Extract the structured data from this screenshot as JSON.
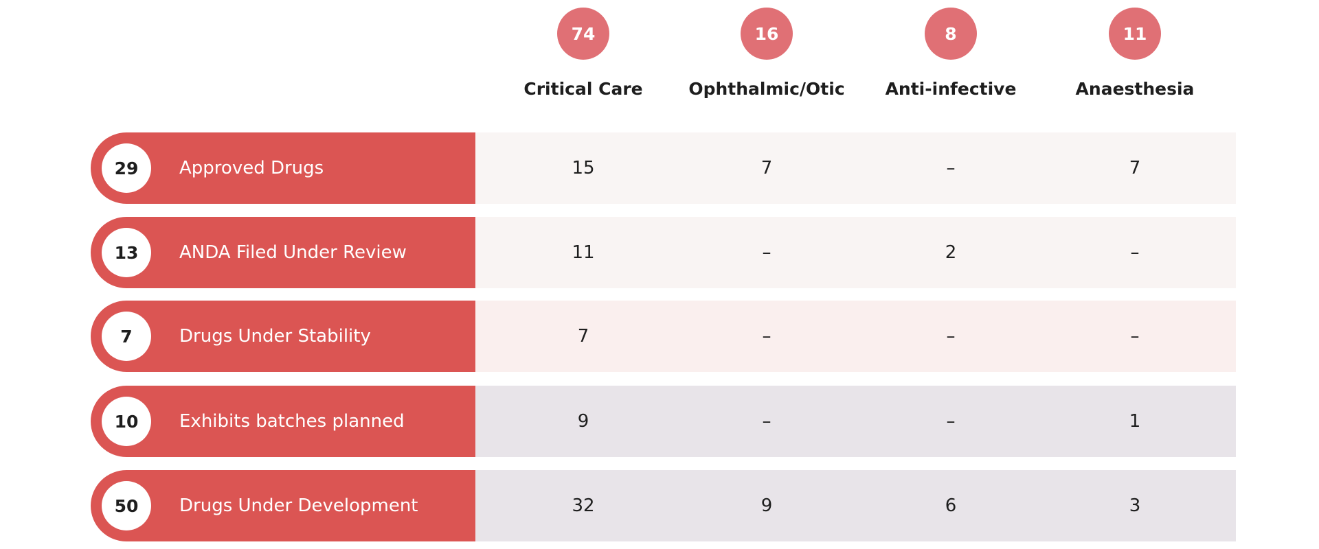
{
  "columns": [
    {
      "count": "74",
      "label": "Critical Care"
    },
    {
      "count": "16",
      "label": "Ophthalmic/Otic"
    },
    {
      "count": "8",
      "label": "Anti-infective"
    },
    {
      "count": "11",
      "label": "Anaesthesia"
    }
  ],
  "rows": [
    {
      "count": "29",
      "label": "Approved Drugs",
      "cells": [
        "15",
        "7",
        "–",
        "7"
      ]
    },
    {
      "count": "13",
      "label": "ANDA Filed Under Review",
      "cells": [
        "11",
        "–",
        "2",
        "–"
      ]
    },
    {
      "count": "7",
      "label": "Drugs Under Stability",
      "cells": [
        "7",
        "–",
        "–",
        "–"
      ]
    },
    {
      "count": "10",
      "label": "Exhibits batches planned",
      "cells": [
        "9",
        "–",
        "–",
        "1"
      ]
    },
    {
      "count": "50",
      "label": "Drugs Under Development",
      "cells": [
        "32",
        "9",
        "6",
        "3"
      ]
    }
  ]
}
